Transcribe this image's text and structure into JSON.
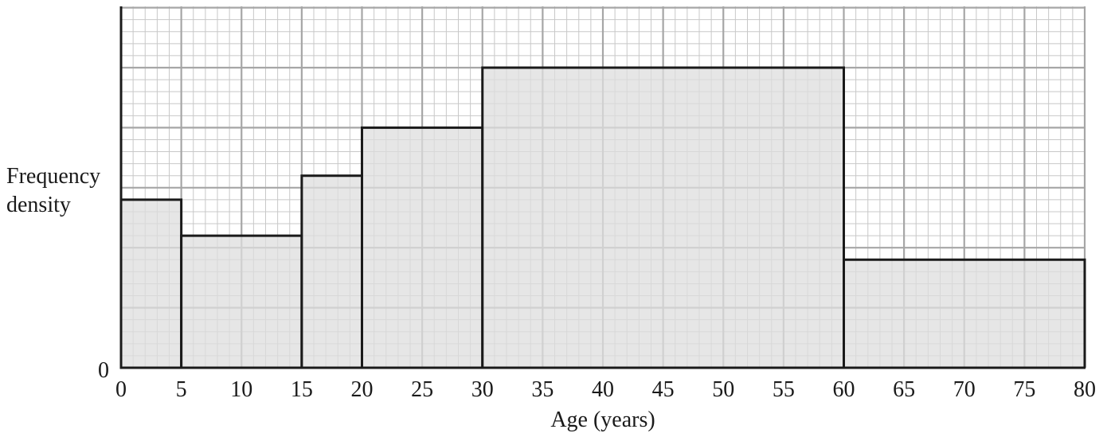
{
  "chart_data": {
    "type": "bar",
    "subtype": "histogram",
    "title": "",
    "xlabel": "Age (years)",
    "ylabel_lines": [
      "Frequency",
      "density"
    ],
    "xlim": [
      0,
      80
    ],
    "ylim": [
      0,
      10
    ],
    "x_ticks": [
      "0",
      "5",
      "10",
      "15",
      "20",
      "25",
      "30",
      "35",
      "40",
      "45",
      "50",
      "55",
      "60",
      "65",
      "70",
      "75",
      "80"
    ],
    "y_ticks": [
      "0"
    ],
    "grid": true,
    "bins": [
      {
        "from": 0,
        "to": 5,
        "density": 5.6
      },
      {
        "from": 5,
        "to": 15,
        "density": 4.4
      },
      {
        "from": 15,
        "to": 20,
        "density": 6.4
      },
      {
        "from": 20,
        "to": 30,
        "density": 8.0
      },
      {
        "from": 30,
        "to": 60,
        "density": 10.0
      },
      {
        "from": 60,
        "to": 80,
        "density": 3.6
      }
    ],
    "colors": {
      "bar_fill": "#dedede",
      "bar_stroke": "#1a1a1a",
      "grid_major": "#a6a6a6",
      "grid_minor": "#c8c8c8"
    }
  }
}
